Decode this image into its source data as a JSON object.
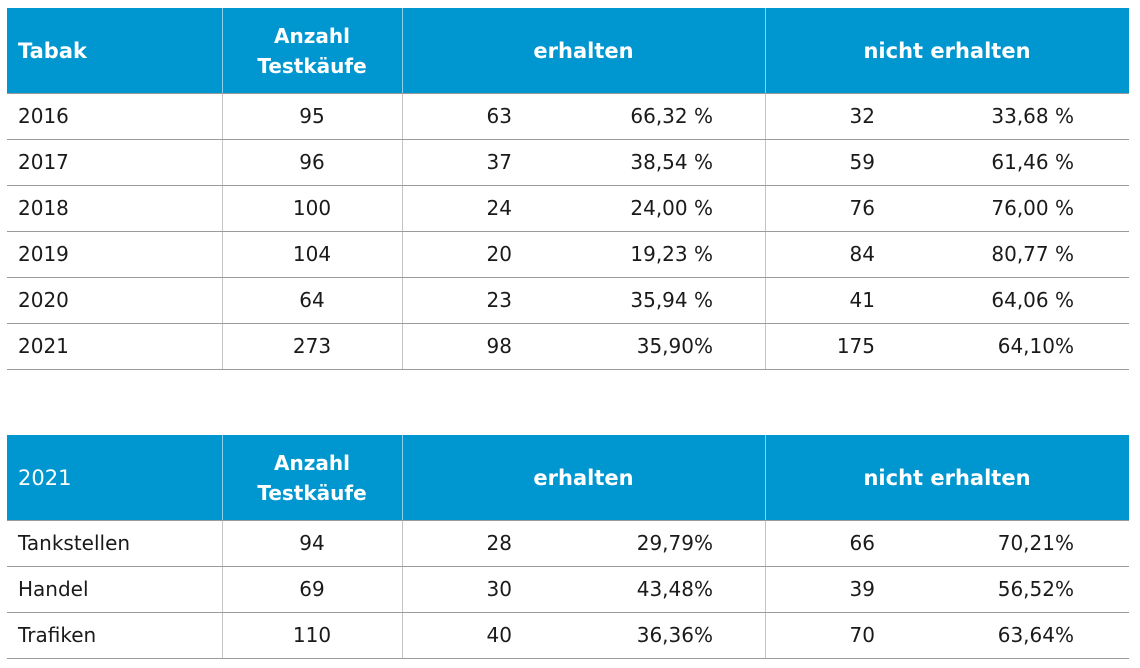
{
  "table1": {
    "header": {
      "label": "Tabak",
      "count_line1": "Anzahl",
      "count_line2": "Testkäufe",
      "received": "erhalten",
      "not_received": "nicht erhalten"
    },
    "rows": [
      {
        "label": "2016",
        "count": "95",
        "received_n": "63",
        "received_pct": "66,32 %",
        "not_n": "32",
        "not_pct": "33,68 %"
      },
      {
        "label": "2017",
        "count": "96",
        "received_n": "37",
        "received_pct": "38,54 %",
        "not_n": "59",
        "not_pct": "61,46 %"
      },
      {
        "label": "2018",
        "count": "100",
        "received_n": "24",
        "received_pct": "24,00 %",
        "not_n": "76",
        "not_pct": "76,00 %"
      },
      {
        "label": "2019",
        "count": "104",
        "received_n": "20",
        "received_pct": "19,23 %",
        "not_n": "84",
        "not_pct": "80,77 %"
      },
      {
        "label": "2020",
        "count": "64",
        "received_n": "23",
        "received_pct": "35,94 %",
        "not_n": "41",
        "not_pct": "64,06 %"
      },
      {
        "label": "2021",
        "count": "273",
        "received_n": "98",
        "received_pct": "35,90%",
        "not_n": "175",
        "not_pct": "64,10%"
      }
    ]
  },
  "table2": {
    "header": {
      "label": "2021",
      "count_line1": "Anzahl",
      "count_line2": "Testkäufe",
      "received": "erhalten",
      "not_received": "nicht erhalten"
    },
    "rows": [
      {
        "label": "Tankstellen",
        "count": "94",
        "received_n": "28",
        "received_pct": "29,79%",
        "not_n": "66",
        "not_pct": "70,21%"
      },
      {
        "label": "Handel",
        "count": "69",
        "received_n": "30",
        "received_pct": "43,48%",
        "not_n": "39",
        "not_pct": "56,52%"
      },
      {
        "label": "Trafiken",
        "count": "110",
        "received_n": "40",
        "received_pct": "36,36%",
        "not_n": "70",
        "not_pct": "63,64%"
      }
    ]
  },
  "colors": {
    "header_bg": "#0096cf",
    "header_text": "#ffffff",
    "row_rule": "#9a9a9a"
  }
}
